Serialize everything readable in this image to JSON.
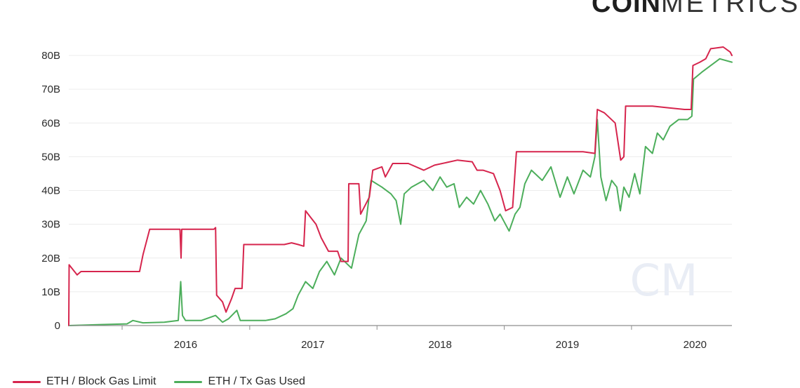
{
  "brand": {
    "logo_bold": "COIN",
    "logo_light": "METRICS",
    "watermark": "CM"
  },
  "chart_data": {
    "type": "line",
    "title": "",
    "xlabel": "",
    "ylabel": "",
    "y_ticks": [
      "0",
      "10B",
      "20B",
      "30B",
      "40B",
      "50B",
      "60B",
      "70B",
      "80B"
    ],
    "x_ticks": [
      "2016",
      "2017",
      "2018",
      "2019",
      "2020"
    ],
    "ylim": [
      0,
      80
    ],
    "y_unit": "B",
    "xlim": [
      "2015-08-01",
      "2020-10-15"
    ],
    "grid": "horizontal",
    "legend_position": "bottom-left",
    "series": [
      {
        "name": "ETH / Block Gas Limit",
        "color": "#d6254d",
        "points": [
          [
            "2015-08-01",
            0
          ],
          [
            "2015-08-02",
            18
          ],
          [
            "2015-08-25",
            15
          ],
          [
            "2015-09-05",
            16
          ],
          [
            "2016-02-20",
            16
          ],
          [
            "2016-03-01",
            21
          ],
          [
            "2016-03-20",
            28.5
          ],
          [
            "2016-06-15",
            28.5
          ],
          [
            "2016-06-18",
            20
          ],
          [
            "2016-06-20",
            28.5
          ],
          [
            "2016-09-20",
            28.5
          ],
          [
            "2016-09-25",
            29
          ],
          [
            "2016-09-28",
            9
          ],
          [
            "2016-10-15",
            7
          ],
          [
            "2016-10-25",
            4
          ],
          [
            "2016-11-10",
            8
          ],
          [
            "2016-11-20",
            11
          ],
          [
            "2016-12-10",
            11
          ],
          [
            "2016-12-15",
            24
          ],
          [
            "2017-01-15",
            24
          ],
          [
            "2017-04-10",
            24
          ],
          [
            "2017-05-01",
            24.5
          ],
          [
            "2017-05-20",
            24
          ],
          [
            "2017-06-05",
            23.5
          ],
          [
            "2017-06-10",
            34
          ],
          [
            "2017-06-25",
            32
          ],
          [
            "2017-07-10",
            30
          ],
          [
            "2017-07-25",
            26
          ],
          [
            "2017-08-15",
            22
          ],
          [
            "2017-09-10",
            22
          ],
          [
            "2017-09-20",
            19
          ],
          [
            "2017-10-10",
            19
          ],
          [
            "2017-10-12",
            42
          ],
          [
            "2017-11-10",
            42
          ],
          [
            "2017-11-15",
            33
          ],
          [
            "2017-12-10",
            38
          ],
          [
            "2017-12-20",
            46
          ],
          [
            "2018-01-15",
            47
          ],
          [
            "2018-01-25",
            44
          ],
          [
            "2018-02-15",
            48
          ],
          [
            "2018-04-01",
            48
          ],
          [
            "2018-05-15",
            46
          ],
          [
            "2018-06-15",
            47.5
          ],
          [
            "2018-08-20",
            49
          ],
          [
            "2018-10-01",
            48.5
          ],
          [
            "2018-10-15",
            46
          ],
          [
            "2018-11-01",
            46
          ],
          [
            "2018-12-01",
            45
          ],
          [
            "2018-12-20",
            40
          ],
          [
            "2019-01-05",
            34
          ],
          [
            "2019-01-25",
            35
          ],
          [
            "2019-02-05",
            51.5
          ],
          [
            "2019-06-01",
            51.5
          ],
          [
            "2019-07-15",
            51.5
          ],
          [
            "2019-08-15",
            51.5
          ],
          [
            "2019-09-18",
            51
          ],
          [
            "2019-09-25",
            64
          ],
          [
            "2019-10-15",
            63
          ],
          [
            "2019-11-15",
            60
          ],
          [
            "2019-12-01",
            49
          ],
          [
            "2019-12-10",
            50
          ],
          [
            "2019-12-15",
            65
          ],
          [
            "2020-03-01",
            65
          ],
          [
            "2020-04-15",
            64.5
          ],
          [
            "2020-06-01",
            64
          ],
          [
            "2020-06-20",
            64
          ],
          [
            "2020-06-25",
            77
          ],
          [
            "2020-07-15",
            78
          ],
          [
            "2020-08-01",
            79
          ],
          [
            "2020-08-15",
            82
          ],
          [
            "2020-09-20",
            82.5
          ],
          [
            "2020-10-10",
            81
          ],
          [
            "2020-10-15",
            80
          ]
        ]
      },
      {
        "name": "ETH / Tx Gas Used",
        "color": "#4cae5b",
        "points": [
          [
            "2015-08-01",
            0
          ],
          [
            "2015-11-01",
            0.3
          ],
          [
            "2016-01-15",
            0.5
          ],
          [
            "2016-02-01",
            1.5
          ],
          [
            "2016-03-01",
            0.8
          ],
          [
            "2016-05-01",
            1
          ],
          [
            "2016-06-10",
            1.5
          ],
          [
            "2016-06-17",
            13
          ],
          [
            "2016-06-22",
            3
          ],
          [
            "2016-07-01",
            1.5
          ],
          [
            "2016-08-15",
            1.5
          ],
          [
            "2016-09-25",
            3
          ],
          [
            "2016-10-15",
            1
          ],
          [
            "2016-11-01",
            2
          ],
          [
            "2016-11-25",
            4.5
          ],
          [
            "2016-12-05",
            1.5
          ],
          [
            "2017-02-15",
            1.5
          ],
          [
            "2017-03-15",
            2
          ],
          [
            "2017-04-15",
            3.5
          ],
          [
            "2017-05-05",
            5
          ],
          [
            "2017-05-20",
            9
          ],
          [
            "2017-06-10",
            13
          ],
          [
            "2017-07-01",
            11
          ],
          [
            "2017-07-20",
            16
          ],
          [
            "2017-08-10",
            19
          ],
          [
            "2017-09-01",
            15
          ],
          [
            "2017-09-20",
            20
          ],
          [
            "2017-10-20",
            17
          ],
          [
            "2017-11-10",
            27
          ],
          [
            "2017-12-01",
            31
          ],
          [
            "2017-12-15",
            43
          ],
          [
            "2018-01-15",
            41
          ],
          [
            "2018-02-10",
            39
          ],
          [
            "2018-02-25",
            37
          ],
          [
            "2018-03-10",
            30
          ],
          [
            "2018-03-20",
            39
          ],
          [
            "2018-04-10",
            41
          ],
          [
            "2018-05-15",
            43
          ],
          [
            "2018-06-10",
            40
          ],
          [
            "2018-07-01",
            44
          ],
          [
            "2018-07-20",
            41
          ],
          [
            "2018-08-10",
            42
          ],
          [
            "2018-08-25",
            35
          ],
          [
            "2018-09-15",
            38
          ],
          [
            "2018-10-05",
            36
          ],
          [
            "2018-10-25",
            40
          ],
          [
            "2018-11-15",
            36
          ],
          [
            "2018-12-05",
            31
          ],
          [
            "2018-12-20",
            33
          ],
          [
            "2019-01-15",
            28
          ],
          [
            "2019-02-01",
            33
          ],
          [
            "2019-02-15",
            35
          ],
          [
            "2019-03-01",
            42
          ],
          [
            "2019-03-20",
            46
          ],
          [
            "2019-04-20",
            43
          ],
          [
            "2019-05-15",
            47
          ],
          [
            "2019-06-10",
            38
          ],
          [
            "2019-07-01",
            44
          ],
          [
            "2019-07-20",
            39
          ],
          [
            "2019-08-15",
            46
          ],
          [
            "2019-09-05",
            44
          ],
          [
            "2019-09-18",
            50
          ],
          [
            "2019-09-25",
            61
          ],
          [
            "2019-10-05",
            44
          ],
          [
            "2019-10-20",
            37
          ],
          [
            "2019-11-05",
            43
          ],
          [
            "2019-11-20",
            41
          ],
          [
            "2019-11-30",
            34
          ],
          [
            "2019-12-10",
            41
          ],
          [
            "2019-12-25",
            38
          ],
          [
            "2020-01-10",
            45
          ],
          [
            "2020-01-25",
            39
          ],
          [
            "2020-02-10",
            53
          ],
          [
            "2020-03-01",
            51
          ],
          [
            "2020-03-15",
            57
          ],
          [
            "2020-04-01",
            55
          ],
          [
            "2020-04-20",
            59
          ],
          [
            "2020-05-15",
            61
          ],
          [
            "2020-06-10",
            61
          ],
          [
            "2020-06-22",
            62
          ],
          [
            "2020-06-27",
            73
          ],
          [
            "2020-07-20",
            75
          ],
          [
            "2020-08-15",
            77
          ],
          [
            "2020-09-10",
            79
          ],
          [
            "2020-10-15",
            78
          ]
        ]
      }
    ]
  }
}
